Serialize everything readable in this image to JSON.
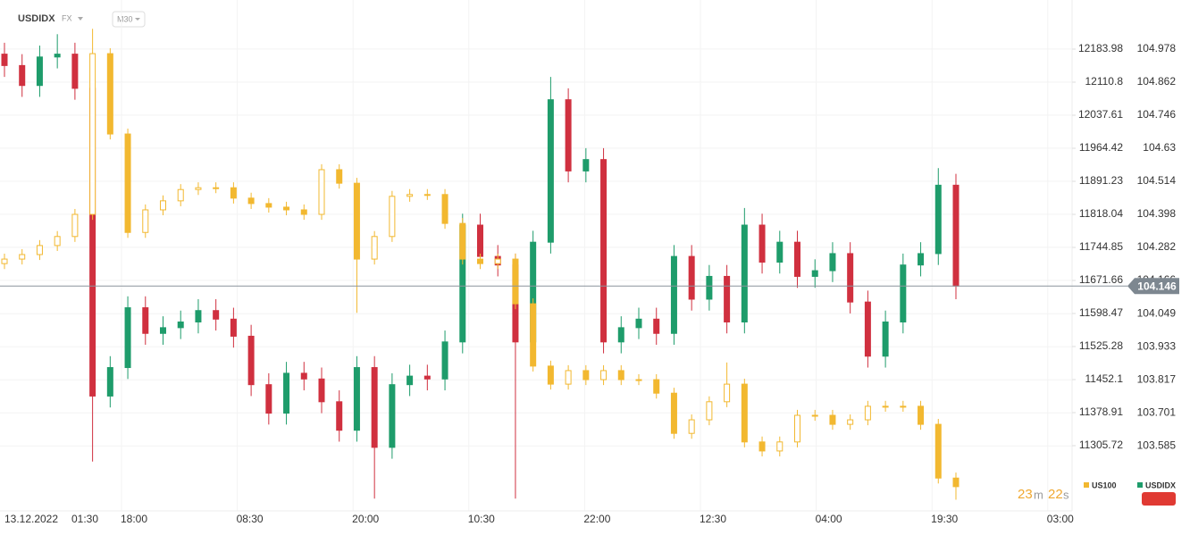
{
  "header": {
    "symbol": "USDIDX",
    "market": "FX",
    "interval": "M30"
  },
  "countdown": {
    "minutes": "23",
    "m": "m",
    "seconds": "22",
    "s": "s"
  },
  "chart_data": {
    "type": "candlestick",
    "categories": [
      "13.12.2022",
      "01:30",
      "18:00",
      "08:30",
      "20:00",
      "10:30",
      "22:00",
      "12:30",
      "04:00",
      "19:30",
      "03:00"
    ],
    "ylim": [
      103.357,
      105.15
    ],
    "yticks": [
      104.978,
      104.862,
      104.746,
      104.63,
      104.514,
      104.398,
      104.282,
      104.166,
      104.049,
      103.933,
      103.817,
      103.701,
      103.585
    ],
    "y2lim": [
      11161.3,
      12292.8
    ],
    "y2ticks": [
      12183.98,
      12110.8,
      12037.61,
      11964.42,
      11891.23,
      11818.04,
      11744.85,
      11671.66,
      11598.47,
      11525.28,
      11452.1,
      11378.91,
      11305.72
    ],
    "last_price": 104.146,
    "grid": true,
    "legend": "lower right",
    "series": [
      {
        "name": "USDIDX",
        "axis": "y",
        "up_color": "#1e9c6b",
        "down_color": "#d0303f",
        "open": [
          104.96,
          104.92,
          104.85,
          104.95,
          104.96,
          104.84,
          103.76,
          103.86,
          104.07,
          103.98,
          104.0,
          104.02,
          104.06,
          104.03,
          103.97,
          103.8,
          103.7,
          103.84,
          103.82,
          103.74,
          103.64,
          103.86,
          103.58,
          103.8,
          103.83,
          103.82,
          103.95,
          104.36,
          104.25,
          104.22,
          103.95,
          104.3,
          104.8,
          104.55,
          104.59,
          103.95,
          104.0,
          104.03,
          103.98,
          104.25,
          104.1,
          104.18,
          104.02,
          104.36,
          104.23,
          104.3,
          104.18,
          104.2,
          104.26,
          104.09,
          103.9,
          104.02,
          104.22,
          104.26,
          104.5
        ],
        "high": [
          105.0,
          104.96,
          104.99,
          105.03,
          105.0,
          104.88,
          103.9,
          104.11,
          104.11,
          104.04,
          104.06,
          104.1,
          104.1,
          104.07,
          104.01,
          103.84,
          103.88,
          103.88,
          103.86,
          103.78,
          103.9,
          103.9,
          103.84,
          103.87,
          103.87,
          103.99,
          104.4,
          104.4,
          104.29,
          104.26,
          104.34,
          104.88,
          104.84,
          104.63,
          104.63,
          104.04,
          104.07,
          104.07,
          104.29,
          104.29,
          104.22,
          104.22,
          104.42,
          104.4,
          104.34,
          104.34,
          104.24,
          104.3,
          104.3,
          104.13,
          104.06,
          104.26,
          104.3,
          104.56,
          104.54
        ],
        "low": [
          104.88,
          104.81,
          104.81,
          104.91,
          104.8,
          103.53,
          103.72,
          103.82,
          103.94,
          103.94,
          103.96,
          103.98,
          103.99,
          103.93,
          103.76,
          103.66,
          103.66,
          103.78,
          103.7,
          103.6,
          103.6,
          103.4,
          103.54,
          103.76,
          103.78,
          103.78,
          103.91,
          104.21,
          104.18,
          103.4,
          103.91,
          104.26,
          104.51,
          104.51,
          103.91,
          103.91,
          103.96,
          103.94,
          103.94,
          104.06,
          104.06,
          103.98,
          103.98,
          104.19,
          104.19,
          104.14,
          104.14,
          104.16,
          104.05,
          103.86,
          103.86,
          103.98,
          104.18,
          104.22,
          104.1
        ],
        "close": [
          104.92,
          104.85,
          104.95,
          104.96,
          104.84,
          103.76,
          103.86,
          104.07,
          103.98,
          104.0,
          104.02,
          104.06,
          104.03,
          103.97,
          103.8,
          103.7,
          103.84,
          103.82,
          103.74,
          103.64,
          103.86,
          103.58,
          103.8,
          103.83,
          103.82,
          103.95,
          104.36,
          104.25,
          104.22,
          103.95,
          104.3,
          104.8,
          104.55,
          104.59,
          103.95,
          104.0,
          104.03,
          103.98,
          104.25,
          104.1,
          104.18,
          104.02,
          104.36,
          104.23,
          104.3,
          104.18,
          104.2,
          104.26,
          104.09,
          103.9,
          104.02,
          104.22,
          104.26,
          104.5,
          104.146
        ]
      },
      {
        "name": "US100",
        "axis": "y2",
        "up_color": "#f2b830",
        "down_color": "#f2b830",
        "open": [
          11709,
          11719,
          11729,
          11749,
          11769,
          11818,
          12174,
          11996,
          11778,
          11828,
          11848,
          11873,
          11877,
          11877,
          11854,
          11842,
          11834,
          11828,
          11818,
          11917,
          11887,
          11719,
          11769,
          11858,
          11862,
          11862,
          11798,
          11719,
          11709,
          11719,
          11620,
          11482,
          11442,
          11472,
          11452,
          11472,
          11452,
          11452,
          11422,
          11333,
          11363,
          11403,
          11442,
          11314,
          11294,
          11314,
          11373,
          11373,
          11353,
          11363,
          11393,
          11393,
          11393,
          11353,
          11234
        ],
        "high": [
          11731,
          11741,
          11761,
          11781,
          11830,
          12229,
          12186,
          12008,
          11840,
          11860,
          11885,
          11889,
          11889,
          11889,
          11866,
          11854,
          11846,
          11840,
          11929,
          11929,
          11899,
          11781,
          11870,
          11874,
          11874,
          11874,
          11810,
          11731,
          11731,
          11731,
          11632,
          11494,
          11484,
          11484,
          11484,
          11484,
          11464,
          11464,
          11434,
          11375,
          11415,
          11490,
          11454,
          11326,
          11326,
          11385,
          11385,
          11385,
          11375,
          11405,
          11405,
          11405,
          11405,
          11365,
          11246
        ],
        "low": [
          11697,
          11707,
          11717,
          11737,
          11757,
          11806,
          11984,
          11766,
          11766,
          11816,
          11836,
          11861,
          11865,
          11842,
          11830,
          11822,
          11816,
          11806,
          11806,
          11875,
          11600,
          11707,
          11757,
          11846,
          11850,
          11786,
          11707,
          11697,
          11697,
          11608,
          11470,
          11430,
          11430,
          11440,
          11440,
          11440,
          11440,
          11410,
          11321,
          11321,
          11351,
          11391,
          11302,
          11282,
          11282,
          11302,
          11361,
          11341,
          11341,
          11351,
          11381,
          11381,
          11341,
          11222,
          11186
        ],
        "close": [
          11719,
          11729,
          11749,
          11769,
          11818,
          12174,
          11996,
          11778,
          11828,
          11848,
          11873,
          11877,
          11877,
          11854,
          11842,
          11834,
          11828,
          11818,
          11917,
          11887,
          11719,
          11769,
          11858,
          11862,
          11862,
          11798,
          11719,
          11709,
          11719,
          11620,
          11482,
          11442,
          11472,
          11452,
          11472,
          11452,
          11452,
          11422,
          11333,
          11363,
          11403,
          11442,
          11314,
          11294,
          11314,
          11373,
          11373,
          11353,
          11363,
          11393,
          11393,
          11393,
          11353,
          11234,
          11215
        ]
      }
    ]
  }
}
